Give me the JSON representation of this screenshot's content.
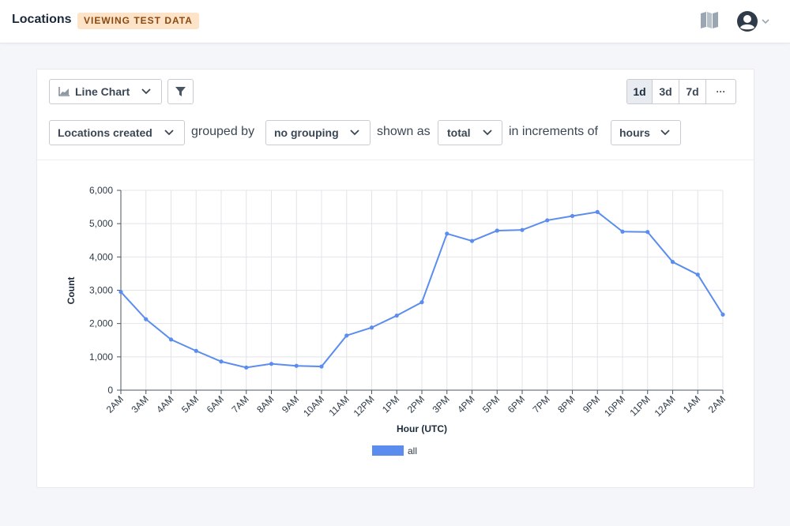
{
  "header": {
    "title": "Locations",
    "badge": "VIEWING TEST DATA"
  },
  "toolbar": {
    "chart_type_label": "Line Chart",
    "range_options": [
      "1d",
      "3d",
      "7d",
      "···"
    ],
    "active_range": "1d"
  },
  "query": {
    "metric": "Locations created",
    "grouped_by_text": "grouped by",
    "grouping": "no grouping",
    "shown_as_text": "shown as",
    "aggregation": "total",
    "increments_text": "in increments of",
    "increment": "hours"
  },
  "icons": {
    "chart": "line-chart-icon",
    "filter": "funnel-icon",
    "docs": "book-icon",
    "user": "user-avatar-icon",
    "dropdown": "chevron-down-icon"
  },
  "colors": {
    "series": "#5b8def",
    "badge_bg": "#fde3c8",
    "badge_text": "#8a4a12"
  },
  "chart_data": {
    "type": "line",
    "title": "",
    "xlabel": "Hour (UTC)",
    "ylabel": "Count",
    "ylim": [
      0,
      6000
    ],
    "y_ticks": [
      0,
      1000,
      2000,
      3000,
      4000,
      5000,
      6000
    ],
    "y_tick_labels": [
      "0",
      "1,000",
      "2,000",
      "3,000",
      "4,000",
      "5,000",
      "6,000"
    ],
    "categories": [
      "2AM",
      "3AM",
      "4AM",
      "5AM",
      "6AM",
      "7AM",
      "8AM",
      "9AM",
      "10AM",
      "11AM",
      "12PM",
      "1PM",
      "2PM",
      "3PM",
      "4PM",
      "5PM",
      "6PM",
      "7PM",
      "8PM",
      "9PM",
      "10PM",
      "11PM",
      "12AM",
      "1AM",
      "2AM"
    ],
    "series": [
      {
        "name": "all",
        "values": [
          2950,
          2130,
          1520,
          1180,
          860,
          680,
          790,
          730,
          710,
          1640,
          1880,
          2240,
          2640,
          4700,
          4480,
          4790,
          4810,
          5100,
          5230,
          5350,
          4760,
          4750,
          3850,
          3470,
          2270
        ]
      }
    ],
    "grid": true,
    "legend": "bottom"
  }
}
